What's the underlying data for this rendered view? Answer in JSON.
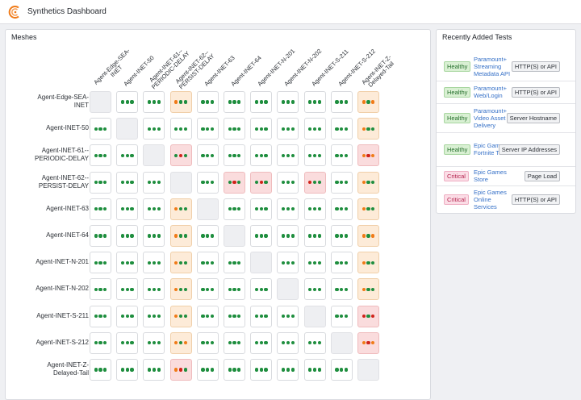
{
  "header": {
    "title": "Synthetics Dashboard",
    "logo_icon": "synthetics-logo-icon"
  },
  "meshes": {
    "title": "Meshes",
    "columns": [
      "Agent-Edge-SEA-\nINET",
      "Agent-INET-50",
      "Agent-INET-61--\nPERIODIC-DELAY",
      "Agent-INET-62--\nPERSIST-DELAY",
      "Agent-INET-63",
      "Agent-INET-64",
      "Agent-INET-N-201",
      "Agent-INET-N-202",
      "Agent-INET-S-211",
      "Agent-INET-S-212",
      "Agent-INET-Z-\nDelayed-Tail"
    ],
    "rows": [
      {
        "label": "Agent-Edge-SEA-\nINET",
        "cells": [
          "self",
          "ggg",
          "ggg",
          "ogg",
          "ggg",
          "ggg",
          "ggg",
          "ggg",
          "ggg",
          "ggg",
          "ogo"
        ]
      },
      {
        "label": "Agent-INET-50",
        "cells": [
          "ggg",
          "self",
          "ggg",
          "ggg",
          "ggg",
          "ggg",
          "ggg",
          "ggg",
          "ggg",
          "ggg",
          "ogg"
        ]
      },
      {
        "label": "Agent-INET-61--\nPERIODIC-DELAY",
        "cells": [
          "ggg",
          "ggg",
          "self",
          "grg",
          "ggg",
          "ggg",
          "ggg",
          "ggg",
          "ggg",
          "ggg",
          "oro"
        ]
      },
      {
        "label": "Agent-INET-62--\nPERSIST-DELAY",
        "cells": [
          "ggg",
          "ggg",
          "ggg",
          "self",
          "ggg",
          "grg",
          "grg",
          "ggg",
          "rgg",
          "ggg",
          "ogg"
        ]
      },
      {
        "label": "Agent-INET-63",
        "cells": [
          "ggg",
          "ggg",
          "ggg",
          "ogg",
          "self",
          "ggg",
          "ggg",
          "ggg",
          "ggg",
          "ggg",
          "ogg"
        ]
      },
      {
        "label": "Agent-INET-64",
        "cells": [
          "ggg",
          "ggg",
          "ggg",
          "ogg",
          "ggg",
          "self",
          "ggg",
          "ggg",
          "ggg",
          "ggg",
          "ogo"
        ]
      },
      {
        "label": "Agent-INET-N-201",
        "cells": [
          "ggg",
          "ggg",
          "ggg",
          "ogg",
          "ggg",
          "ggg",
          "self",
          "ggg",
          "ggg",
          "ggg",
          "ogg"
        ]
      },
      {
        "label": "Agent-INET-N-202",
        "cells": [
          "ggg",
          "ggg",
          "ggg",
          "ogg",
          "ggg",
          "ggg",
          "ggg",
          "self",
          "ggg",
          "ggg",
          "ogg"
        ]
      },
      {
        "label": "Agent-INET-S-211",
        "cells": [
          "ggg",
          "ggg",
          "ggg",
          "ogg",
          "ggg",
          "ggg",
          "ggg",
          "ggg",
          "self",
          "ggg",
          "rgr"
        ]
      },
      {
        "label": "Agent-INET-S-212",
        "cells": [
          "ggg",
          "ggg",
          "ggg",
          "ogo",
          "ggg",
          "ggg",
          "ggg",
          "ggg",
          "ggg",
          "self",
          "oro"
        ]
      },
      {
        "label": "Agent-INET-Z-\nDelayed-Tail",
        "cells": [
          "ggg",
          "ggg",
          "ggg",
          "org",
          "ggg",
          "ggg",
          "ggg",
          "ggg",
          "ggg",
          "ggg",
          "self"
        ]
      }
    ]
  },
  "recent": {
    "title": "Recently Added Tests",
    "tests": [
      {
        "status": "Healthy",
        "name": "Paramount+ Streaming Metadata API",
        "type": "HTTP(S) or API"
      },
      {
        "status": "Healthy",
        "name": "Paramount+ Web/Login",
        "type": "HTTP(S) or API"
      },
      {
        "status": "Healthy",
        "name": "Paramount+ Video Asset Delivery",
        "type": "Server Hostname"
      },
      {
        "status": "Healthy",
        "name": "Epic Games Fortnite Traffic",
        "type": "Server IP Addresses"
      },
      {
        "status": "Critical",
        "name": "Epic Games Store",
        "type": "Page Load"
      },
      {
        "status": "Critical",
        "name": "Epic Games Online Services",
        "type": "HTTP(S) or API"
      }
    ]
  },
  "colors": {
    "healthy": "#1e8e3e",
    "warning": "#f07b18",
    "critical": "#d0241b"
  }
}
